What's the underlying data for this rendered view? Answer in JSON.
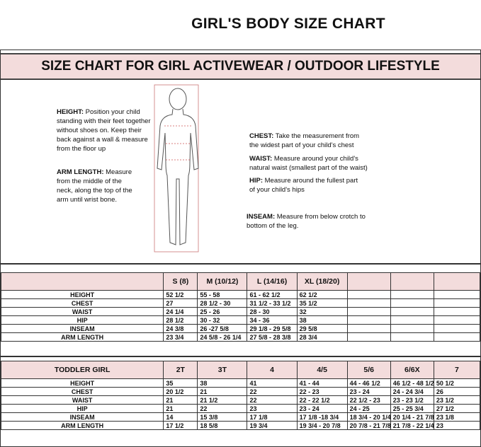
{
  "title": "GIRL'S BODY SIZE CHART",
  "subtitle": "SIZE CHART FOR GIRL ACTIVEWEAR / OUTDOOR LIFESTYLE",
  "notes": {
    "height": {
      "label": "HEIGHT:",
      "text": "Position your child standing with their feet together without shoes on. Keep their back against a wall & measure from the floor up"
    },
    "arm": {
      "label": "ARM LENGTH:",
      "text": "Measure from the middle of the neck, along the top of the arm until wrist bone."
    },
    "chest": {
      "label": "CHEST:",
      "text": "Take the measurement from the widest part of your child's chest"
    },
    "waist": {
      "label": "WAIST:",
      "text": "Measure around your child's natural waist (smallest part of the waist)"
    },
    "hip": {
      "label": "HIP:",
      "text": "Measure around the fullest part of your child's hips"
    },
    "inseam": {
      "label": "INSEAM:",
      "text": "Measure from below crotch to bottom of the leg."
    }
  },
  "girl_table": {
    "header": [
      "",
      "S (8)",
      "M (10/12)",
      "L (14/16)",
      "XL (18/20)",
      "",
      "",
      ""
    ],
    "rows": [
      [
        "HEIGHT",
        "52 1/2",
        "55 - 58",
        "61 - 62 1/2",
        "62 1/2",
        "",
        "",
        ""
      ],
      [
        "CHEST",
        "27",
        "28 1/2 - 30",
        "31 1/2 - 33 1/2",
        "35 1/2",
        "",
        "",
        ""
      ],
      [
        "WAIST",
        "24 1/4",
        "25 - 26",
        "28 - 30",
        "32",
        "",
        "",
        ""
      ],
      [
        "HIP",
        "28 1/2",
        "30 - 32",
        "34 - 36",
        "38",
        "",
        "",
        ""
      ],
      [
        "INSEAM",
        "24 3/8",
        "26 -27 5/8",
        "29 1/8 - 29 5/8",
        "29 5/8",
        "",
        "",
        ""
      ],
      [
        "ARM LENGTH",
        "23 3/4",
        "24 5/8 - 26 1/4",
        "27 5/8 - 28 3/8",
        "28 3/4",
        "",
        "",
        ""
      ]
    ]
  },
  "toddler_table": {
    "header": [
      "TODDLER GIRL",
      "2T",
      "3T",
      "4",
      "4/5",
      "5/6",
      "6/6X",
      "7"
    ],
    "rows": [
      [
        "HEIGHT",
        "35",
        "38",
        "41",
        "41 - 44",
        "44 - 46 1/2",
        "46 1/2 - 48 1/2",
        "50 1/2"
      ],
      [
        "CHEST",
        "20 1/2",
        "21",
        "22",
        "22 - 23",
        "23 - 24",
        "24 - 24 3/4",
        "26"
      ],
      [
        "WAIST",
        "21",
        "21 1/2",
        "22",
        "22 - 22 1/2",
        "22 1/2 - 23",
        "23 - 23 1/2",
        "23 1/2"
      ],
      [
        "HIP",
        "21",
        "22",
        "23",
        "23 - 24",
        "24 - 25",
        "25 - 25 3/4",
        "27 1/2"
      ],
      [
        "INSEAM",
        "14",
        "15 3/8",
        "17 1/8",
        "17 1/8 -18 3/4",
        "18 3/4 - 20 1/4",
        "20 1/4 - 21 7/8",
        "23 1/8"
      ],
      [
        "ARM LENGTH",
        "17 1/2",
        "18 5/8",
        "19 3/4",
        "19 3/4 - 20 7/8",
        "20 7/8 - 21 7/8",
        "21 7/8 - 22 1/4",
        "23"
      ]
    ]
  },
  "colors": {
    "band": "#f3dcdc"
  }
}
